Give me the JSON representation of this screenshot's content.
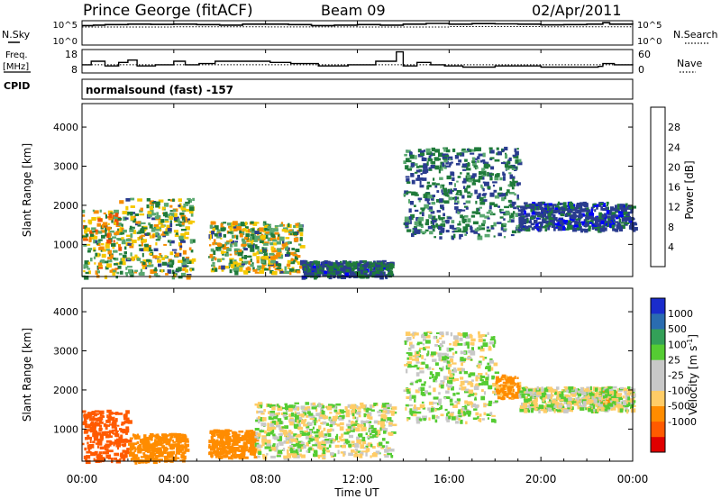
{
  "header": {
    "station": "Prince George (fitACF)",
    "beam": "Beam 09",
    "date": "02/Apr/2011"
  },
  "side_labels": {
    "nsky": "N.Sky",
    "nsearch": "N.Search",
    "freq_1": "Freq.",
    "freq_2": "[MHz]",
    "nave": "Nave",
    "cpid": "CPID"
  },
  "cpid_text": "normalsound (fast) -157",
  "colors": {
    "power": [
      "#0000ff",
      "#2a3c8f",
      "#1f7a3a",
      "#5aa870",
      "#f5c800",
      "#f58c00",
      "#f05000",
      "#e00000"
    ],
    "velocity": [
      "#e00000",
      "#ff5a00",
      "#ff8c00",
      "#ffcc66",
      "#c8c8c8",
      "#c8c8c8",
      "#55cc33",
      "#33a058",
      "#2a6cb0",
      "#1a2ccc"
    ]
  },
  "chart_data": [
    {
      "type": "line",
      "panel": "noise",
      "left_ticks": [
        "10^5",
        "10^0"
      ],
      "right_ticks": [
        "10^5",
        "10^0"
      ],
      "series": [
        {
          "values": [
            [
              0,
              4.0
            ],
            [
              0.5,
              4.1
            ],
            [
              1,
              4.2
            ],
            [
              2,
              4.3
            ],
            [
              3,
              4.25
            ],
            [
              4,
              4.3
            ],
            [
              5,
              4.2
            ],
            [
              6,
              4.1
            ],
            [
              7,
              4.3
            ],
            [
              8,
              4.3
            ],
            [
              9,
              4.2
            ],
            [
              10,
              4.0
            ],
            [
              11,
              4.1
            ],
            [
              12,
              4.2
            ],
            [
              13,
              4.1
            ],
            [
              14,
              4.3
            ],
            [
              15,
              4.45
            ],
            [
              16,
              4.3
            ],
            [
              17,
              4.4
            ],
            [
              18,
              4.35
            ],
            [
              19,
              4.3
            ],
            [
              20,
              4.15
            ],
            [
              21,
              4.2
            ],
            [
              22,
              4.3
            ],
            [
              22.7,
              4.6
            ],
            [
              23,
              4.3
            ],
            [
              24,
              4.2
            ]
          ]
        },
        {
          "values": [
            [
              0,
              3.7
            ],
            [
              4,
              3.75
            ],
            [
              8,
              3.72
            ],
            [
              12,
              3.7
            ],
            [
              16,
              3.8
            ],
            [
              20,
              3.75
            ],
            [
              24,
              3.7
            ]
          ]
        }
      ]
    },
    {
      "type": "line",
      "panel": "frequency",
      "left_ticks": [
        "18",
        "8"
      ],
      "right_ticks": [
        "60",
        "0"
      ],
      "series": [
        {
          "values": [
            [
              0,
              11.5
            ],
            [
              0.4,
              13
            ],
            [
              1,
              11
            ],
            [
              1.6,
              12.5
            ],
            [
              2,
              13.5
            ],
            [
              2.4,
              11
            ],
            [
              3.2,
              11.5
            ],
            [
              4,
              13
            ],
            [
              4.5,
              11.5
            ],
            [
              5.1,
              12
            ],
            [
              5.8,
              13
            ],
            [
              7,
              13
            ],
            [
              8.2,
              12.5
            ],
            [
              9.1,
              12
            ],
            [
              10.3,
              11
            ],
            [
              11.6,
              11.5
            ],
            [
              12.8,
              13
            ],
            [
              13.7,
              17
            ],
            [
              14,
              11
            ],
            [
              14.6,
              12.5
            ],
            [
              15.2,
              11.5
            ],
            [
              15.8,
              11
            ],
            [
              16.6,
              10.5
            ],
            [
              18,
              11
            ],
            [
              20,
              10.5
            ],
            [
              22.5,
              10.8
            ],
            [
              22.7,
              12
            ],
            [
              23.2,
              11.5
            ],
            [
              24,
              11.8
            ]
          ]
        },
        {
          "values": [
            [
              0,
              11.5
            ],
            [
              24,
              11.5
            ]
          ]
        }
      ]
    },
    {
      "type": "heatmap",
      "panel": "power",
      "ylabel": "Slant Range [km]",
      "xlim": [
        0,
        24
      ],
      "ylim": [
        180,
        4600
      ],
      "yticks": [
        1000,
        2000,
        3000,
        4000
      ],
      "colorbar": {
        "label": "Power [dB]",
        "range": [
          0,
          32
        ],
        "ticks": [
          "4",
          "8",
          "12",
          "16",
          "20",
          "24",
          "28"
        ]
      },
      "echo_regions": [
        {
          "t0": 0.0,
          "t1": 1.6,
          "r0": 200,
          "r1": 1900,
          "peak_db": 26
        },
        {
          "t0": 1.6,
          "t1": 4.8,
          "r0": 200,
          "r1": 2200,
          "peak_db": 22
        },
        {
          "t0": 5.5,
          "t1": 9.5,
          "r0": 300,
          "r1": 1600,
          "peak_db": 24
        },
        {
          "t0": 9.5,
          "t1": 13.5,
          "r0": 200,
          "r1": 600,
          "peak_db": 12
        },
        {
          "t0": 14.0,
          "t1": 19.0,
          "r0": 1200,
          "r1": 3500,
          "peak_db": 14
        },
        {
          "t0": 19.0,
          "t1": 24.0,
          "r0": 1400,
          "r1": 2100,
          "peak_db": 10
        }
      ]
    },
    {
      "type": "heatmap",
      "panel": "velocity",
      "ylabel": "Slant Range [km]",
      "xlabel": "Time UT",
      "xlim": [
        0,
        24
      ],
      "ylim": [
        180,
        4600
      ],
      "yticks": [
        1000,
        2000,
        3000,
        4000
      ],
      "xticks": [
        "00:00",
        "04:00",
        "08:00",
        "12:00",
        "16:00",
        "20:00",
        "00:00"
      ],
      "colorbar": {
        "label_main": "Velocity",
        "label_unit": "[m s",
        "label_sup": "-1",
        "label_close": "]",
        "ticks": [
          "1000",
          "500",
          "100",
          "25",
          "-25",
          "-100",
          "-500",
          "-1000"
        ]
      },
      "echo_regions": [
        {
          "t0": 0.0,
          "t1": 2.0,
          "r0": 200,
          "r1": 1500,
          "vel": -600
        },
        {
          "t0": 2.0,
          "t1": 4.5,
          "r0": 200,
          "r1": 900,
          "vel": -200
        },
        {
          "t0": 5.5,
          "t1": 7.5,
          "r0": 300,
          "r1": 1000,
          "vel": -200
        },
        {
          "t0": 7.5,
          "t1": 13.5,
          "r0": 300,
          "r1": 1700,
          "vel": 0
        },
        {
          "t0": 14.0,
          "t1": 18.0,
          "r0": 1200,
          "r1": 3500,
          "vel": 10
        },
        {
          "t0": 18.0,
          "t1": 19.0,
          "r0": 1800,
          "r1": 2400,
          "vel": -150
        },
        {
          "t0": 22.5,
          "t1": 23.2,
          "r0": 1600,
          "r1": 2000,
          "vel": -350
        },
        {
          "t0": 19.0,
          "t1": 24.0,
          "r0": 1500,
          "r1": 2100,
          "vel": 0
        }
      ]
    }
  ]
}
